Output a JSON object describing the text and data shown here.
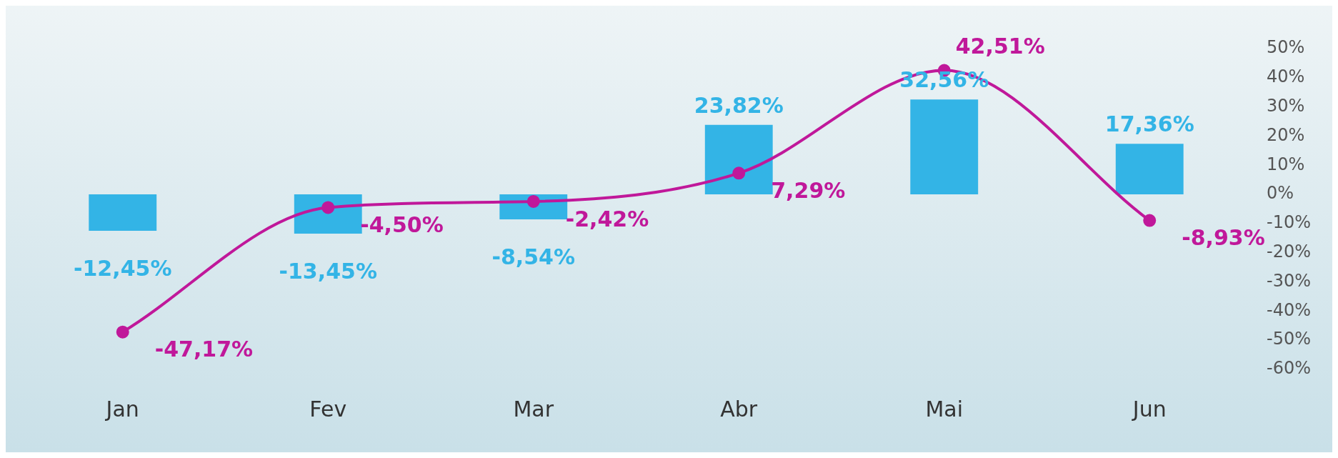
{
  "chart_data": {
    "type": "bar",
    "categories": [
      "Jan",
      "Fev",
      "Mar",
      "Abr",
      "Mai",
      "Jun"
    ],
    "series": [
      {
        "color": "#33b4e6",
        "values": [
          -12.45,
          -13.45,
          -8.54,
          23.82,
          32.56,
          17.36
        ],
        "value_labels": [
          "-12,45%",
          "-13,45%",
          "-8,54%",
          "23,82%",
          "32,56%",
          "17,36%"
        ]
      },
      {
        "type": "line",
        "color": "#c0189a",
        "values": [
          -47.17,
          -4.5,
          -2.42,
          7.29,
          42.51,
          -8.93
        ],
        "value_labels": [
          "-47,17%",
          "-4,50%",
          "-2,42%",
          "7,29%",
          "42,51%",
          "-8,93%"
        ]
      }
    ],
    "ylim": [
      -60,
      50
    ],
    "yticks": [
      {
        "value": -60,
        "label": "-60%"
      },
      {
        "value": -50,
        "label": "-50%"
      },
      {
        "value": -40,
        "label": "-40%"
      },
      {
        "value": -30,
        "label": "-30%"
      },
      {
        "value": -20,
        "label": "-20%"
      },
      {
        "value": -10,
        "label": "-10%"
      },
      {
        "value": 0,
        "label": "0%"
      },
      {
        "value": 10,
        "label": "10%"
      },
      {
        "value": 20,
        "label": "20%"
      },
      {
        "value": 30,
        "label": "30%"
      },
      {
        "value": 40,
        "label": "40%"
      },
      {
        "value": 50,
        "label": "50%"
      }
    ],
    "grid": false,
    "legend": false,
    "marker": "circle",
    "line_style": "solid"
  }
}
